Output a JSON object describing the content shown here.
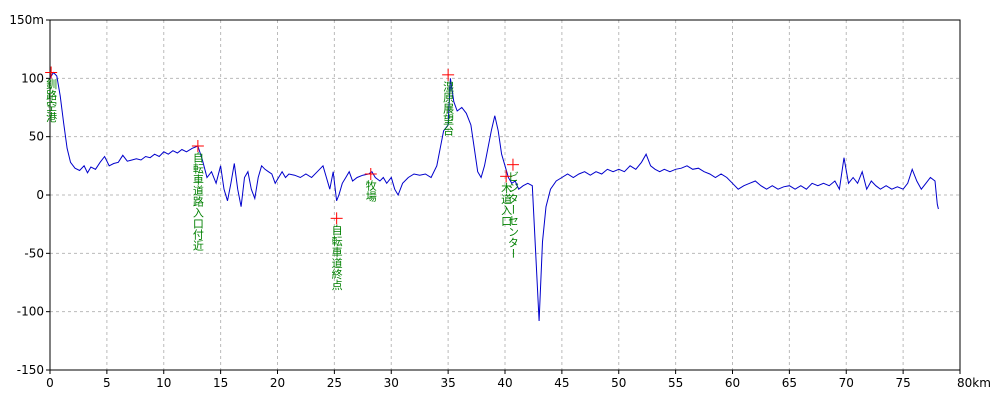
{
  "chart_data": {
    "type": "line",
    "title": "",
    "xlabel": "",
    "ylabel": "",
    "x_unit": "km",
    "y_unit": "m",
    "xlim": [
      0,
      80
    ],
    "ylim": [
      -150,
      150
    ],
    "x_ticks": [
      0,
      5,
      10,
      15,
      20,
      25,
      30,
      35,
      40,
      45,
      50,
      55,
      60,
      65,
      70,
      75,
      80
    ],
    "y_ticks": [
      -150,
      -100,
      -50,
      0,
      50,
      100,
      150
    ],
    "x_tick_labels": [
      "0",
      "5",
      "10",
      "15",
      "20",
      "25",
      "30",
      "35",
      "40",
      "45",
      "50",
      "55",
      "60",
      "65",
      "70",
      "75",
      "80km"
    ],
    "y_tick_labels": [
      "-150",
      "-100",
      "-50",
      "0",
      "50",
      "100",
      "150m"
    ],
    "grid": true,
    "colors": {
      "line": "#0000cc",
      "marker": "#ff0000",
      "label": "#008000",
      "grid": "#bbbbbb"
    },
    "series": [
      {
        "name": "",
        "points": [
          [
            0,
            100
          ],
          [
            0.3,
            105
          ],
          [
            0.6,
            102
          ],
          [
            0.9,
            85
          ],
          [
            1.2,
            62
          ],
          [
            1.5,
            40
          ],
          [
            1.8,
            28
          ],
          [
            2.2,
            23
          ],
          [
            2.6,
            21
          ],
          [
            3.0,
            25
          ],
          [
            3.3,
            19
          ],
          [
            3.6,
            24
          ],
          [
            4.0,
            22
          ],
          [
            4.4,
            28
          ],
          [
            4.8,
            33
          ],
          [
            5.2,
            25
          ],
          [
            5.6,
            27
          ],
          [
            6.0,
            28
          ],
          [
            6.4,
            34
          ],
          [
            6.8,
            29
          ],
          [
            7.2,
            30
          ],
          [
            7.6,
            31
          ],
          [
            8.0,
            30
          ],
          [
            8.4,
            33
          ],
          [
            8.8,
            32
          ],
          [
            9.2,
            35
          ],
          [
            9.6,
            33
          ],
          [
            10.0,
            37
          ],
          [
            10.4,
            35
          ],
          [
            10.8,
            38
          ],
          [
            11.2,
            36
          ],
          [
            11.6,
            39
          ],
          [
            12.0,
            37
          ],
          [
            12.5,
            40
          ],
          [
            13.0,
            42
          ],
          [
            13.4,
            30
          ],
          [
            13.8,
            15
          ],
          [
            14.2,
            20
          ],
          [
            14.6,
            10
          ],
          [
            15.0,
            25
          ],
          [
            15.3,
            5
          ],
          [
            15.6,
            -5
          ],
          [
            15.9,
            10
          ],
          [
            16.2,
            27
          ],
          [
            16.5,
            5
          ],
          [
            16.8,
            -10
          ],
          [
            17.1,
            15
          ],
          [
            17.4,
            20
          ],
          [
            17.7,
            5
          ],
          [
            18.0,
            -3
          ],
          [
            18.3,
            15
          ],
          [
            18.6,
            25
          ],
          [
            18.9,
            22
          ],
          [
            19.2,
            20
          ],
          [
            19.5,
            18
          ],
          [
            19.8,
            10
          ],
          [
            20.1,
            15
          ],
          [
            20.4,
            20
          ],
          [
            20.7,
            15
          ],
          [
            21.0,
            18
          ],
          [
            21.5,
            17
          ],
          [
            22.0,
            15
          ],
          [
            22.5,
            18
          ],
          [
            23.0,
            15
          ],
          [
            23.5,
            20
          ],
          [
            24.0,
            25
          ],
          [
            24.3,
            15
          ],
          [
            24.6,
            5
          ],
          [
            24.9,
            20
          ],
          [
            25.2,
            -5
          ],
          [
            25.4,
            0
          ],
          [
            25.7,
            10
          ],
          [
            26.0,
            15
          ],
          [
            26.3,
            20
          ],
          [
            26.6,
            12
          ],
          [
            27.0,
            15
          ],
          [
            27.5,
            17
          ],
          [
            28.0,
            18
          ],
          [
            28.3,
            20
          ],
          [
            28.6,
            15
          ],
          [
            29.0,
            12
          ],
          [
            29.3,
            15
          ],
          [
            29.6,
            10
          ],
          [
            30.0,
            15
          ],
          [
            30.3,
            5
          ],
          [
            30.6,
            0
          ],
          [
            31.0,
            10
          ],
          [
            31.5,
            15
          ],
          [
            32.0,
            18
          ],
          [
            32.5,
            17
          ],
          [
            33.0,
            18
          ],
          [
            33.5,
            15
          ],
          [
            34.0,
            25
          ],
          [
            34.3,
            40
          ],
          [
            34.6,
            55
          ],
          [
            35.0,
            60
          ],
          [
            35.2,
            100
          ],
          [
            35.5,
            80
          ],
          [
            35.8,
            72
          ],
          [
            36.2,
            75
          ],
          [
            36.6,
            70
          ],
          [
            37.0,
            60
          ],
          [
            37.3,
            40
          ],
          [
            37.6,
            20
          ],
          [
            37.9,
            15
          ],
          [
            38.2,
            25
          ],
          [
            38.5,
            40
          ],
          [
            38.8,
            55
          ],
          [
            39.1,
            68
          ],
          [
            39.4,
            55
          ],
          [
            39.7,
            35
          ],
          [
            40.0,
            25
          ],
          [
            40.3,
            15
          ],
          [
            40.6,
            10
          ],
          [
            40.9,
            12
          ],
          [
            41.2,
            5
          ],
          [
            41.6,
            8
          ],
          [
            42.0,
            10
          ],
          [
            42.4,
            8
          ],
          [
            42.7,
            -50
          ],
          [
            43.0,
            -108
          ],
          [
            43.3,
            -40
          ],
          [
            43.6,
            -10
          ],
          [
            44.0,
            5
          ],
          [
            44.5,
            12
          ],
          [
            45.0,
            15
          ],
          [
            45.5,
            18
          ],
          [
            46.0,
            15
          ],
          [
            46.5,
            18
          ],
          [
            47.0,
            20
          ],
          [
            47.5,
            17
          ],
          [
            48.0,
            20
          ],
          [
            48.5,
            18
          ],
          [
            49.0,
            22
          ],
          [
            49.5,
            20
          ],
          [
            50.0,
            22
          ],
          [
            50.5,
            20
          ],
          [
            51.0,
            25
          ],
          [
            51.5,
            22
          ],
          [
            52.0,
            28
          ],
          [
            52.4,
            35
          ],
          [
            52.8,
            25
          ],
          [
            53.2,
            22
          ],
          [
            53.6,
            20
          ],
          [
            54.0,
            22
          ],
          [
            54.5,
            20
          ],
          [
            55.0,
            22
          ],
          [
            55.5,
            23
          ],
          [
            56.0,
            25
          ],
          [
            56.5,
            22
          ],
          [
            57.0,
            23
          ],
          [
            57.5,
            20
          ],
          [
            58.0,
            18
          ],
          [
            58.5,
            15
          ],
          [
            59.0,
            18
          ],
          [
            59.5,
            15
          ],
          [
            60.0,
            10
          ],
          [
            60.5,
            5
          ],
          [
            61.0,
            8
          ],
          [
            61.5,
            10
          ],
          [
            62.0,
            12
          ],
          [
            62.5,
            8
          ],
          [
            63.0,
            5
          ],
          [
            63.5,
            8
          ],
          [
            64.0,
            5
          ],
          [
            64.5,
            7
          ],
          [
            65.0,
            8
          ],
          [
            65.5,
            5
          ],
          [
            66.0,
            8
          ],
          [
            66.5,
            5
          ],
          [
            67.0,
            10
          ],
          [
            67.5,
            8
          ],
          [
            68.0,
            10
          ],
          [
            68.5,
            8
          ],
          [
            69.0,
            12
          ],
          [
            69.4,
            5
          ],
          [
            69.8,
            32
          ],
          [
            70.2,
            10
          ],
          [
            70.6,
            15
          ],
          [
            71.0,
            10
          ],
          [
            71.4,
            20
          ],
          [
            71.8,
            5
          ],
          [
            72.2,
            12
          ],
          [
            72.6,
            8
          ],
          [
            73.0,
            5
          ],
          [
            73.5,
            8
          ],
          [
            74.0,
            5
          ],
          [
            74.5,
            7
          ],
          [
            75.0,
            5
          ],
          [
            75.4,
            10
          ],
          [
            75.8,
            22
          ],
          [
            76.2,
            12
          ],
          [
            76.6,
            5
          ],
          [
            77.0,
            10
          ],
          [
            77.4,
            15
          ],
          [
            77.8,
            12
          ],
          [
            78.0,
            -8
          ],
          [
            78.1,
            -12
          ]
        ]
      }
    ],
    "waypoints": [
      {
        "x": 0.1,
        "y": 105,
        "label": "釧路空港"
      },
      {
        "x": 13.0,
        "y": 42,
        "label": "自転車道路入口付近"
      },
      {
        "x": 25.2,
        "y": -20,
        "label": "自転車道終点"
      },
      {
        "x": 28.2,
        "y": 18,
        "label": "牧場"
      },
      {
        "x": 35.0,
        "y": 103,
        "label": "湿原展望台"
      },
      {
        "x": 40.7,
        "y": 26,
        "label": "ビジターセンター"
      },
      {
        "x": 40.1,
        "y": 16,
        "label": "木道入口"
      }
    ]
  }
}
